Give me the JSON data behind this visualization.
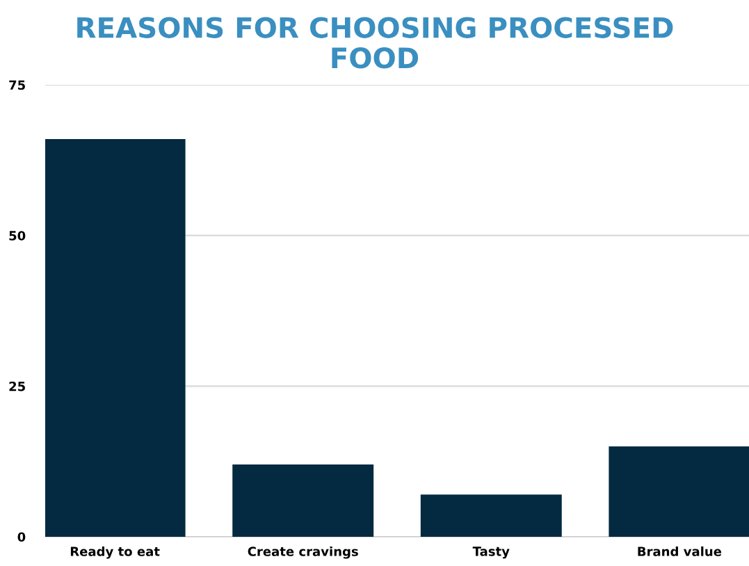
{
  "chart_data": {
    "type": "bar",
    "title": "REASONS FOR CHOOSING PROCESSED\nFOOD",
    "categories": [
      "Ready to eat",
      "Create cravings",
      "Tasty",
      "Brand value"
    ],
    "values": [
      66,
      12,
      7,
      15
    ],
    "color": "#032a40",
    "ylim": [
      0,
      75
    ],
    "yticks": [
      0,
      25,
      50,
      75
    ],
    "grid": "y",
    "legend": false
  }
}
